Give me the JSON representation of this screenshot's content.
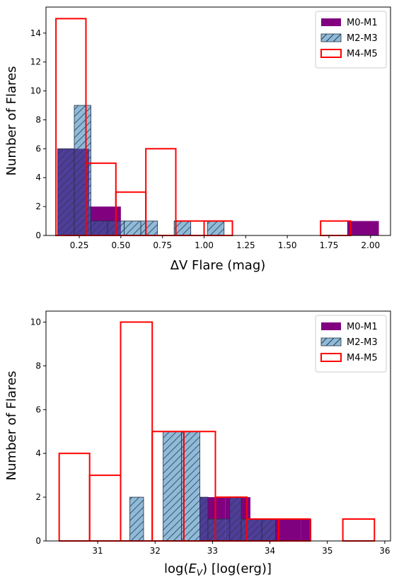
{
  "chart_data": [
    {
      "type": "histogram",
      "xlabel": "ΔV Flare (mag)",
      "ylabel": "Number of Flares",
      "xlim": [
        0.05,
        2.12
      ],
      "ylim": [
        0,
        15.8
      ],
      "xticks": [
        0.25,
        0.5,
        0.75,
        1.0,
        1.25,
        1.5,
        1.75,
        2.0
      ],
      "xtick_labels": [
        "0.25",
        "0.50",
        "0.75",
        "1.00",
        "1.25",
        "1.50",
        "1.75",
        "2.00"
      ],
      "yticks": [
        0,
        2,
        4,
        6,
        8,
        10,
        12,
        14
      ],
      "yticks_labels": [
        "0",
        "2",
        "4",
        "6",
        "8",
        "10",
        "12",
        "14"
      ],
      "legend_position": "top-right",
      "series": [
        {
          "name": "M0-M1",
          "color": "#800080",
          "style": "filled",
          "bins": [
            {
              "x0": 0.12,
              "x1": 0.31,
              "count": 6
            },
            {
              "x0": 0.31,
              "x1": 0.5,
              "count": 2
            },
            {
              "x0": 1.86,
              "x1": 2.05,
              "count": 1
            }
          ]
        },
        {
          "name": "M2-M3",
          "color": "#1f77b4",
          "style": "hatched",
          "bins": [
            {
              "x0": 0.12,
              "x1": 0.22,
              "count": 6
            },
            {
              "x0": 0.22,
              "x1": 0.32,
              "count": 9
            },
            {
              "x0": 0.32,
              "x1": 0.42,
              "count": 1
            },
            {
              "x0": 0.42,
              "x1": 0.52,
              "count": 1
            },
            {
              "x0": 0.52,
              "x1": 0.62,
              "count": 1
            },
            {
              "x0": 0.62,
              "x1": 0.72,
              "count": 1
            },
            {
              "x0": 0.82,
              "x1": 0.92,
              "count": 1
            },
            {
              "x0": 1.02,
              "x1": 1.12,
              "count": 1
            }
          ]
        },
        {
          "name": "M4-M5",
          "color": "#ff0000",
          "style": "outline",
          "bins": [
            {
              "x0": 0.11,
              "x1": 0.29,
              "count": 15
            },
            {
              "x0": 0.29,
              "x1": 0.47,
              "count": 5
            },
            {
              "x0": 0.47,
              "x1": 0.65,
              "count": 3
            },
            {
              "x0": 0.65,
              "x1": 0.83,
              "count": 6
            },
            {
              "x0": 0.83,
              "x1": 1.0,
              "count": 1
            },
            {
              "x0": 1.0,
              "x1": 1.17,
              "count": 1
            },
            {
              "x0": 1.7,
              "x1": 1.88,
              "count": 1
            }
          ]
        }
      ]
    },
    {
      "type": "histogram",
      "xlabel": "log(E_V) [log(erg)]",
      "ylabel": "Number of Flares",
      "xlim": [
        30.1,
        36.1
      ],
      "ylim": [
        0,
        10.5
      ],
      "xticks": [
        31,
        32,
        33,
        34,
        35,
        36
      ],
      "xtick_labels": [
        "31",
        "32",
        "33",
        "34",
        "35",
        "36"
      ],
      "yticks": [
        0,
        2,
        4,
        6,
        8,
        10
      ],
      "yticks_labels": [
        "0",
        "2",
        "4",
        "6",
        "8",
        "10"
      ],
      "legend_position": "top-right",
      "series": [
        {
          "name": "M0-M1",
          "color": "#800080",
          "style": "filled",
          "bins": [
            {
              "x0": 32.78,
              "x1": 33.22,
              "count": 2
            },
            {
              "x0": 33.22,
              "x1": 33.66,
              "count": 2
            },
            {
              "x0": 33.66,
              "x1": 34.1,
              "count": 1
            },
            {
              "x0": 34.1,
              "x1": 34.54,
              "count": 1
            },
            {
              "x0": 34.54,
              "x1": 34.72,
              "count": 1
            }
          ]
        },
        {
          "name": "M2-M3",
          "color": "#1f77b4",
          "style": "hatched",
          "bins": [
            {
              "x0": 31.56,
              "x1": 31.8,
              "count": 2
            },
            {
              "x0": 32.14,
              "x1": 32.46,
              "count": 5
            },
            {
              "x0": 32.46,
              "x1": 32.78,
              "count": 5
            },
            {
              "x0": 32.78,
              "x1": 32.92,
              "count": 2
            },
            {
              "x0": 32.92,
              "x1": 33.3,
              "count": 1
            },
            {
              "x0": 33.3,
              "x1": 33.5,
              "count": 2
            },
            {
              "x0": 33.5,
              "x1": 33.86,
              "count": 1
            },
            {
              "x0": 33.86,
              "x1": 34.1,
              "count": 1
            }
          ]
        },
        {
          "name": "M4-M5",
          "color": "#ff0000",
          "style": "outline",
          "bins": [
            {
              "x0": 30.33,
              "x1": 30.86,
              "count": 4
            },
            {
              "x0": 30.86,
              "x1": 31.4,
              "count": 3
            },
            {
              "x0": 31.4,
              "x1": 31.95,
              "count": 10
            },
            {
              "x0": 31.95,
              "x1": 32.5,
              "count": 5
            },
            {
              "x0": 32.5,
              "x1": 33.05,
              "count": 5
            },
            {
              "x0": 33.05,
              "x1": 33.6,
              "count": 2
            },
            {
              "x0": 33.6,
              "x1": 34.15,
              "count": 1
            },
            {
              "x0": 34.15,
              "x1": 34.7,
              "count": 1
            },
            {
              "x0": 35.27,
              "x1": 35.82,
              "count": 1
            }
          ]
        }
      ]
    }
  ]
}
